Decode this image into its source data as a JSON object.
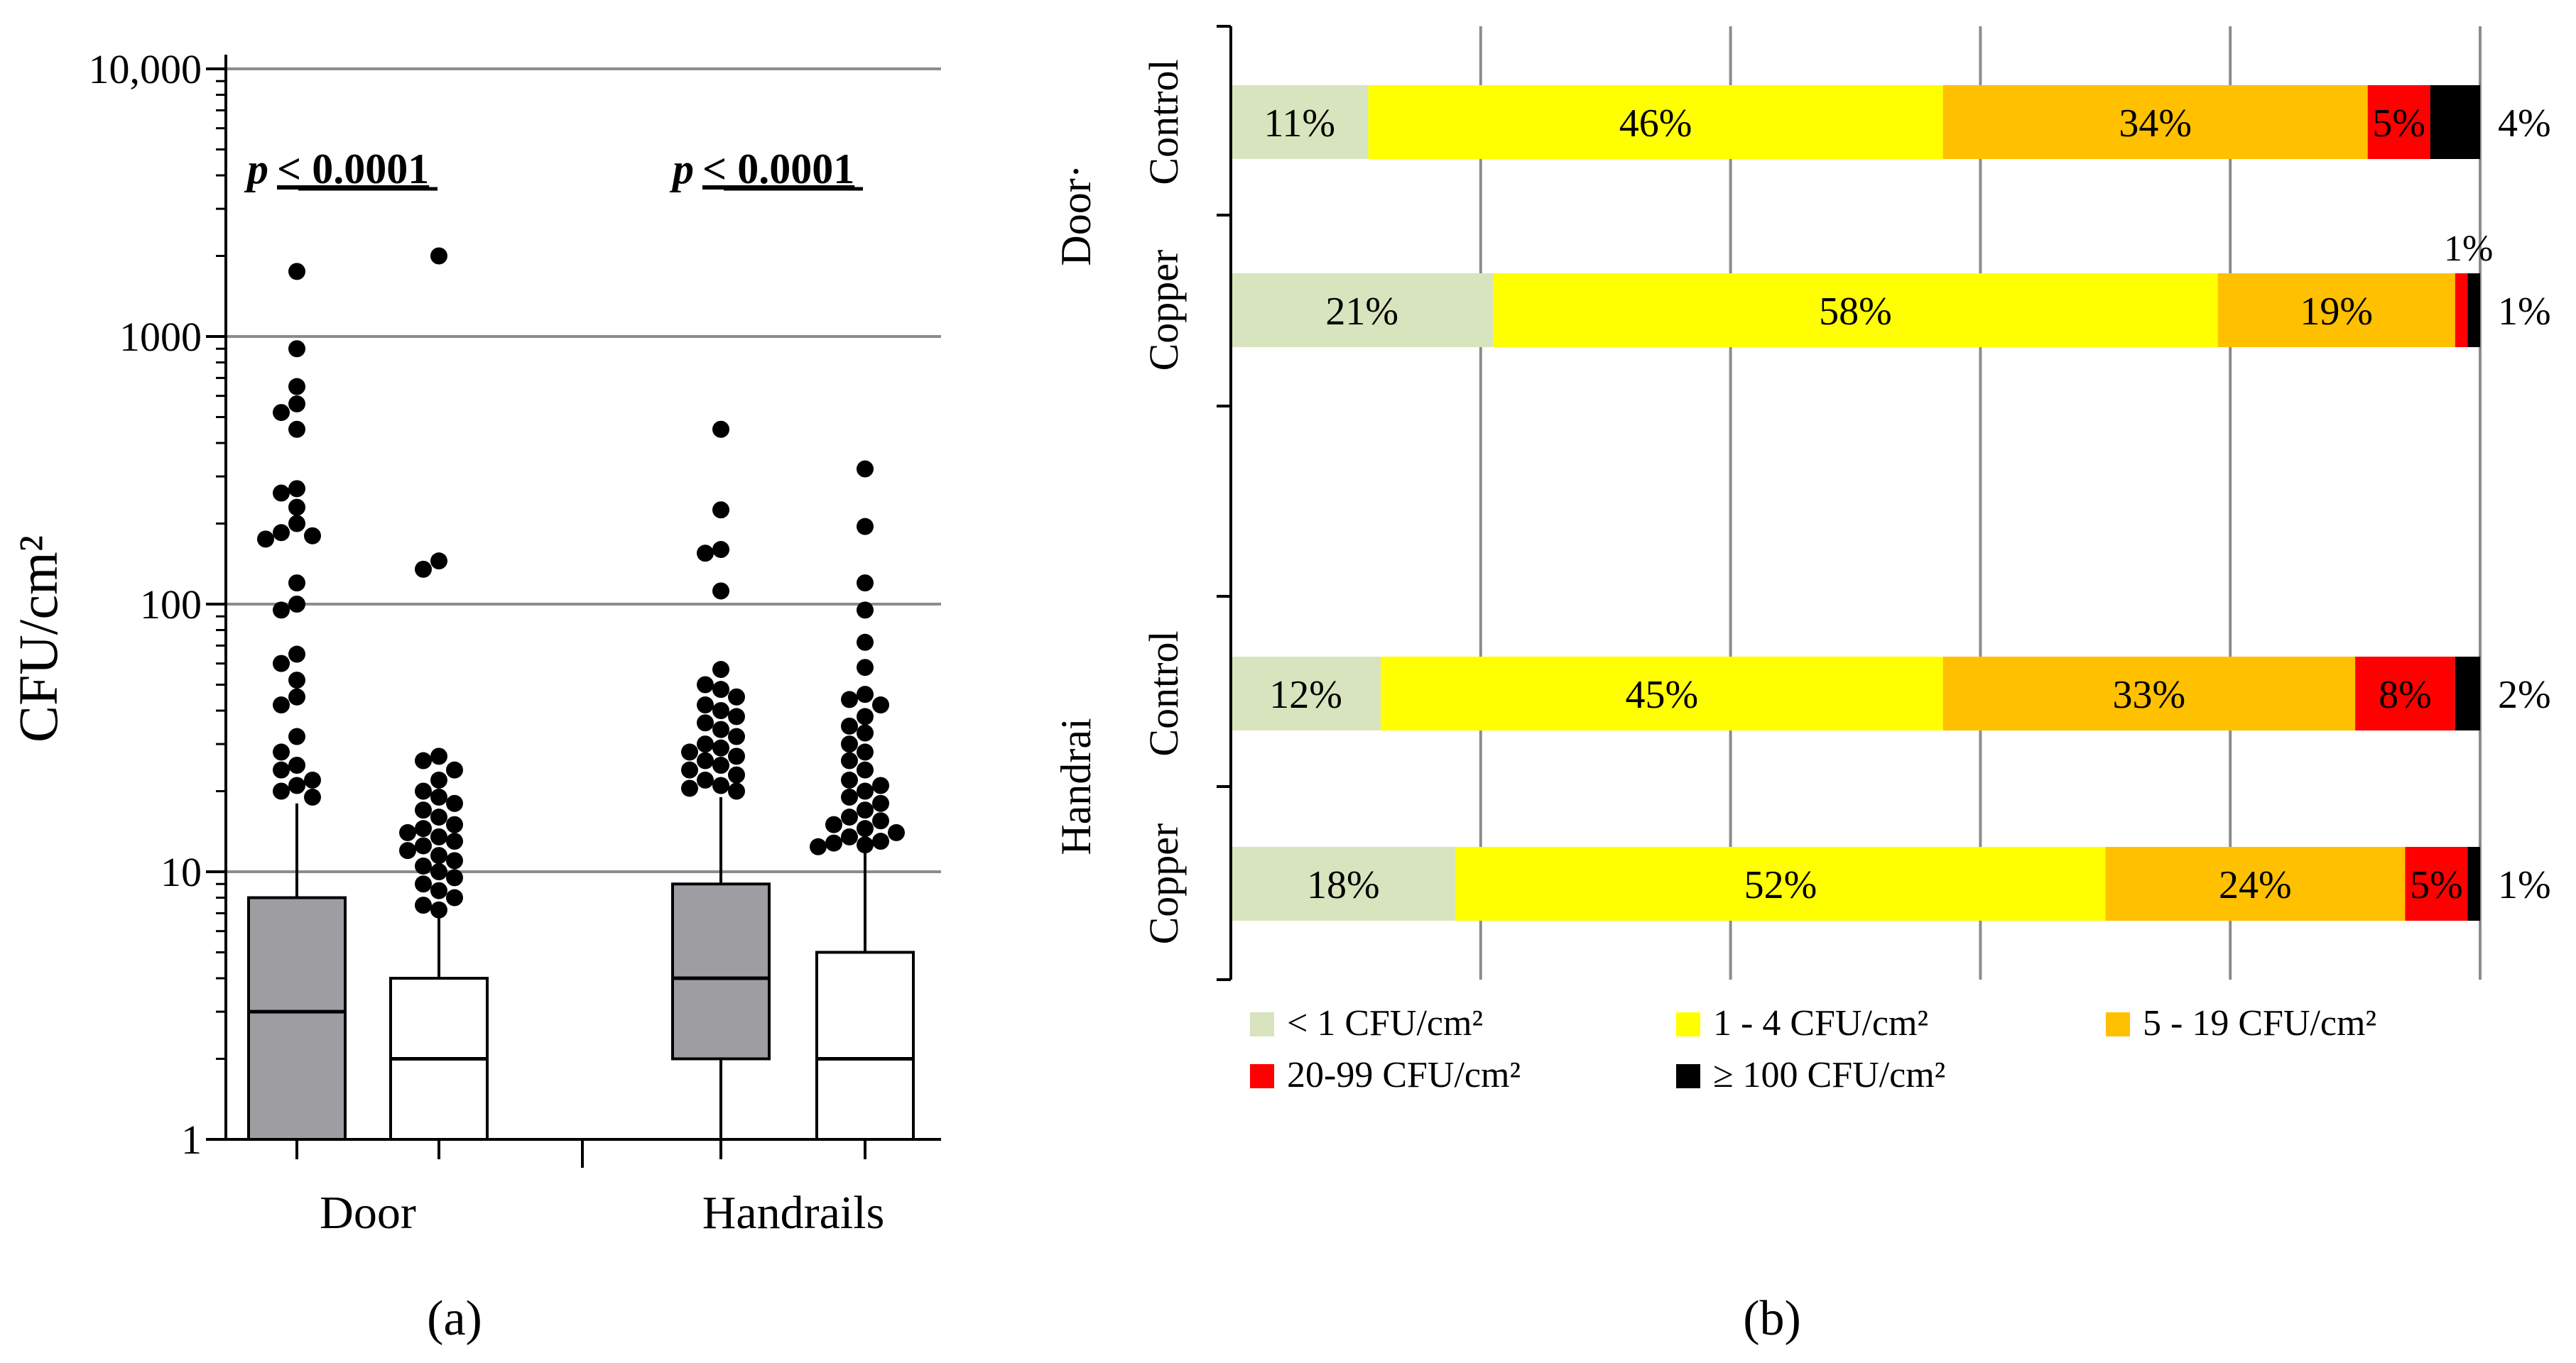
{
  "panel_a": {
    "label": "(a)",
    "chart_data": {
      "type": "box",
      "scale": "log",
      "ylabel": "CFU/cm²",
      "ylim": [
        1,
        10000
      ],
      "yticks": [
        {
          "value": 1,
          "label": "1"
        },
        {
          "value": 10,
          "label": "10"
        },
        {
          "value": 100,
          "label": "100"
        },
        {
          "value": 1000,
          "label": "1000"
        },
        {
          "value": 10000,
          "label": "10,000"
        }
      ],
      "groups": [
        {
          "name": "Door",
          "p_prefix": "p",
          "p_value": "< 0.0001"
        },
        {
          "name": "Handrails",
          "p_prefix": "p",
          "p_value": "< 0.0001"
        }
      ],
      "series_fill": {
        "control": "#9e9ea2",
        "copper": "#ffffff"
      },
      "boxes": [
        {
          "group": "Door",
          "series": "control",
          "whisker_low": 1,
          "q1": 1,
          "median": 3,
          "q3": 8,
          "whisker_high": 18,
          "outliers": [
            1750,
            900,
            650,
            560,
            520,
            450,
            270,
            260,
            230,
            200,
            185,
            180,
            175,
            120,
            100,
            95,
            65,
            60,
            52,
            45,
            42,
            32,
            28,
            25,
            24,
            22,
            21,
            20,
            19
          ]
        },
        {
          "group": "Door",
          "series": "copper",
          "whisker_low": 1,
          "q1": 1,
          "median": 2,
          "q3": 4,
          "whisker_high": 7,
          "outliers": [
            2000,
            145,
            135,
            27,
            26,
            24,
            22,
            20,
            19,
            18,
            17,
            16,
            15,
            14.5,
            14,
            13.5,
            13,
            12.5,
            12,
            11.5,
            11,
            10.5,
            10,
            9.5,
            9,
            8.5,
            8,
            7.5,
            7.2
          ]
        },
        {
          "group": "Handrails",
          "series": "control",
          "whisker_low": 1,
          "q1": 2,
          "median": 4,
          "q3": 9,
          "whisker_high": 19,
          "outliers": [
            450,
            225,
            160,
            155,
            112,
            57,
            50,
            48,
            45,
            42,
            40,
            38,
            36,
            34,
            32,
            30,
            29,
            28,
            27,
            26,
            25,
            24,
            23,
            22,
            21,
            20.5,
            20
          ]
        },
        {
          "group": "Handrails",
          "series": "copper",
          "whisker_low": 1,
          "q1": 1,
          "median": 2,
          "q3": 5,
          "whisker_high": 12,
          "outliers": [
            320,
            195,
            120,
            95,
            72,
            58,
            46,
            44,
            42,
            38,
            35,
            33,
            30,
            28,
            26,
            24,
            22,
            21,
            20,
            19,
            18,
            17,
            16,
            15.5,
            15,
            14.5,
            14,
            13.5,
            13,
            12.8,
            12.6,
            12.4
          ]
        }
      ]
    }
  },
  "panel_b": {
    "label": "(b)",
    "chart_data": {
      "type": "bar",
      "orientation": "horizontal",
      "stacked": true,
      "xlim": [
        0,
        100
      ],
      "categories": [
        {
          "group": "Door",
          "name": "Control",
          "values": [
            11,
            46,
            34,
            5,
            4
          ],
          "labels": [
            "11%",
            "46%",
            "34%",
            "5%",
            "4%"
          ]
        },
        {
          "group": "Door",
          "name": "Copper",
          "values": [
            21,
            58,
            19,
            1,
            1
          ],
          "labels": [
            "21%",
            "58%",
            "19%",
            "1%",
            "1%"
          ]
        },
        {
          "group": "Handrai",
          "name": "Control",
          "values": [
            12,
            45,
            33,
            8,
            2
          ],
          "labels": [
            "12%",
            "45%",
            "33%",
            "8%",
            "2%"
          ]
        },
        {
          "group": "Handrai",
          "name": "Copper",
          "values": [
            18,
            52,
            24,
            5,
            1
          ],
          "labels": [
            "18%",
            "52%",
            "24%",
            "5%",
            "1%"
          ]
        }
      ],
      "group_labels": [
        "Door·",
        "Handrai"
      ],
      "series": [
        {
          "name": "< 1 CFU/cm²",
          "color": "#d7e4bd"
        },
        {
          "name": "1 - 4 CFU/cm²",
          "color": "#ffff00"
        },
        {
          "name": "5 - 19 CFU/cm²",
          "color": "#ffc000"
        },
        {
          "name": "20-99 CFU/cm²",
          "color": "#ff0000"
        },
        {
          "name": "≥ 100 CFU/cm²",
          "color": "#000000"
        }
      ]
    }
  }
}
